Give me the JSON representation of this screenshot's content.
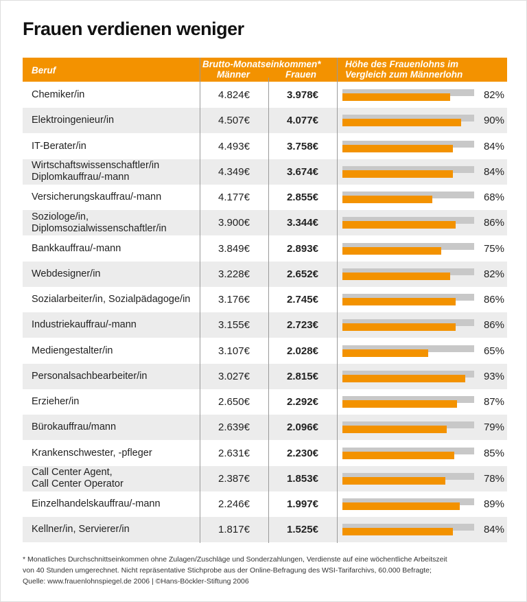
{
  "chart_data": {
    "type": "table",
    "title": "Frauen verdienen weniger",
    "headers": {
      "beruf": "Beruf",
      "income": "Brutto-Monatseinkommen*",
      "men": "Männer",
      "women": "Frauen",
      "ratio_line1": "Höhe des Frauenlohns im",
      "ratio_line2": "Vergleich zum Männerlohn"
    },
    "rows": [
      {
        "beruf": "Chemiker/in",
        "men": "4.824€",
        "women": "3.978€",
        "pct": 82,
        "pct_label": "82%"
      },
      {
        "beruf": "Elektroingenieur/in",
        "men": "4.507€",
        "women": "4.077€",
        "pct": 90,
        "pct_label": "90%"
      },
      {
        "beruf": "IT-Berater/in",
        "men": "4.493€",
        "women": "3.758€",
        "pct": 84,
        "pct_label": "84%"
      },
      {
        "beruf": "Wirtschaftswissenschaftler/in\nDiplomkauffrau/-mann",
        "men": "4.349€",
        "women": "3.674€",
        "pct": 84,
        "pct_label": "84%"
      },
      {
        "beruf": "Versicherungskauffrau/-mann",
        "men": "4.177€",
        "women": "2.855€",
        "pct": 68,
        "pct_label": "68%"
      },
      {
        "beruf": "Soziologe/in,\nDiplomsozialwissenschaftler/in",
        "men": "3.900€",
        "women": "3.344€",
        "pct": 86,
        "pct_label": "86%"
      },
      {
        "beruf": "Bankkauffrau/-mann",
        "men": "3.849€",
        "women": "2.893€",
        "pct": 75,
        "pct_label": "75%"
      },
      {
        "beruf": "Webdesigner/in",
        "men": "3.228€",
        "women": "2.652€",
        "pct": 82,
        "pct_label": "82%"
      },
      {
        "beruf": "Sozialarbeiter/in, Sozialpädagoge/in",
        "men": "3.176€",
        "women": "2.745€",
        "pct": 86,
        "pct_label": "86%"
      },
      {
        "beruf": "Industriekauffrau/-mann",
        "men": "3.155€",
        "women": "2.723€",
        "pct": 86,
        "pct_label": "86%"
      },
      {
        "beruf": "Mediengestalter/in",
        "men": "3.107€",
        "women": "2.028€",
        "pct": 65,
        "pct_label": "65%"
      },
      {
        "beruf": "Personalsachbearbeiter/in",
        "men": "3.027€",
        "women": "2.815€",
        "pct": 93,
        "pct_label": "93%"
      },
      {
        "beruf": "Erzieher/in",
        "men": "2.650€",
        "women": "2.292€",
        "pct": 87,
        "pct_label": "87%"
      },
      {
        "beruf": "Bürokauffrau/mann",
        "men": "2.639€",
        "women": "2.096€",
        "pct": 79,
        "pct_label": "79%"
      },
      {
        "beruf": "Krankenschwester, -pfleger",
        "men": "2.631€",
        "women": "2.230€",
        "pct": 85,
        "pct_label": "85%"
      },
      {
        "beruf": "Call Center Agent,\nCall Center Operator",
        "men": "2.387€",
        "women": "1.853€",
        "pct": 78,
        "pct_label": "78%"
      },
      {
        "beruf": "Einzelhandelskauffrau/-mann",
        "men": "2.246€",
        "women": "1.997€",
        "pct": 89,
        "pct_label": "89%"
      },
      {
        "beruf": "Kellner/in, Servierer/in",
        "men": "1.817€",
        "women": "1.525€",
        "pct": 84,
        "pct_label": "84%"
      }
    ],
    "xlim": [
      0,
      100
    ],
    "colors": {
      "accent": "#f39200",
      "bar_background": "#c8c8c8",
      "row_alt": "#ececec"
    }
  },
  "footnote": [
    "* Monatliches Durchschnittseinkommen ohne Zulagen/Zuschläge und Sonderzahlungen, Verdienste auf eine wöchentliche Arbeitszeit",
    "von 40 Stunden umgerechnet. Nicht repräsentative Stichprobe aus der Online-Befragung des WSI-Tarifarchivs, 60.000 Befragte;",
    "Quelle: www.frauenlohnspiegel.de 2006 | ©Hans-Böckler-Stiftung 2006"
  ]
}
